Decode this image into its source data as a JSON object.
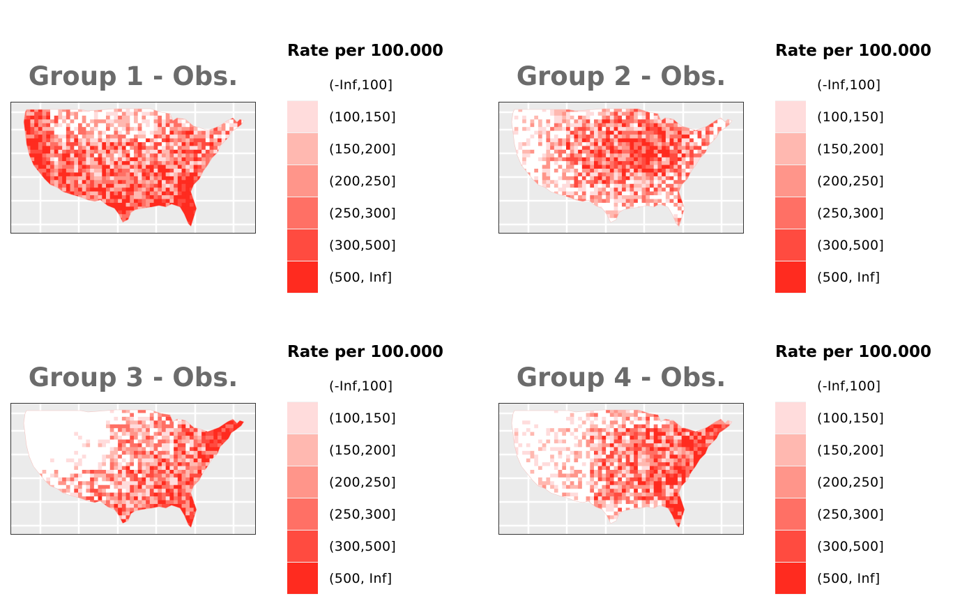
{
  "legend_title": "Rate per 100.000",
  "legend": [
    {
      "label": "(-Inf,100]",
      "color": "#ffffff"
    },
    {
      "label": "(100,150]",
      "color": "#ffdcdc"
    },
    {
      "label": "(150,200]",
      "color": "#ffb8b0"
    },
    {
      "label": "(200,250]",
      "color": "#ff958a"
    },
    {
      "label": "(250,300]",
      "color": "#ff7065"
    },
    {
      "label": "(300,500]",
      "color": "#ff4b40"
    },
    {
      "label": "(500, Inf]",
      "color": "#ff2b1f"
    }
  ],
  "panels": [
    {
      "title": "Group 1 - Obs.",
      "pattern": "south_west"
    },
    {
      "title": "Group 2 - Obs.",
      "pattern": "midwest"
    },
    {
      "title": "Group 3 - Obs.",
      "pattern": "east_south"
    },
    {
      "title": "Group 4 - Obs.",
      "pattern": "mid_east"
    }
  ],
  "colors": {
    "title": "#6b6b6b",
    "panel_bg": "#ebebeb",
    "grid": "#ffffff"
  }
}
